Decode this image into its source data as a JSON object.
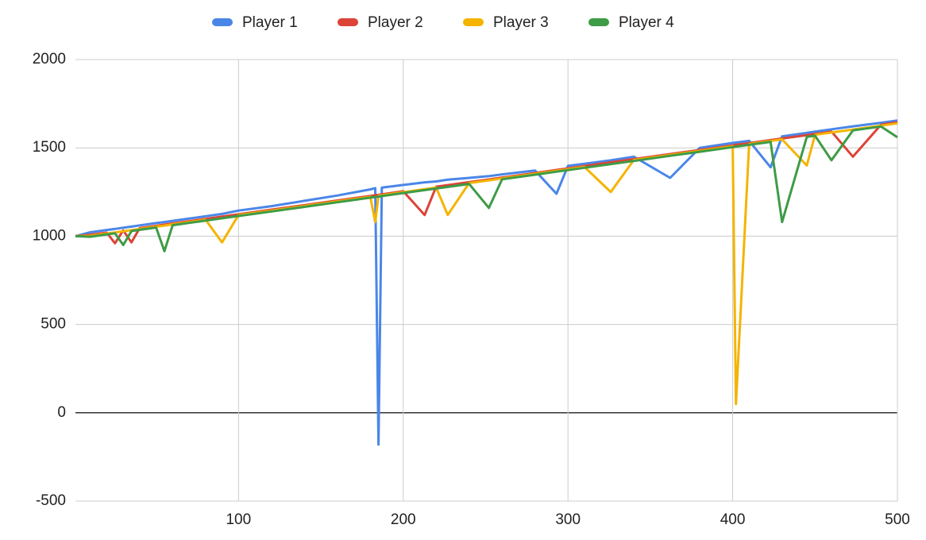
{
  "chart_data": {
    "type": "line",
    "x": [
      1,
      10,
      20,
      25,
      30,
      35,
      40,
      50,
      55,
      60,
      70,
      80,
      90,
      100,
      120,
      140,
      160,
      180,
      183,
      185,
      187,
      200,
      213,
      220,
      227,
      240,
      252,
      260,
      280,
      293,
      300,
      310,
      326,
      340,
      362,
      380,
      400,
      402,
      410,
      423,
      430,
      445,
      450,
      460,
      473,
      490,
      500
    ],
    "series": [
      {
        "name": "Player 1",
        "color": "#4a86e8",
        "values": [
          1000,
          1022,
          1035,
          1041,
          1048,
          1054,
          1061,
          1074,
          1080,
          1087,
          1100,
          1113,
          1126,
          1145,
          1170,
          1200,
          1230,
          1265,
          1272,
          -180,
          1275,
          1290,
          1305,
          1310,
          1320,
          1330,
          1340,
          1350,
          1372,
          1240,
          1398,
          1410,
          1430,
          1450,
          1330,
          1500,
          1528,
          1530,
          1540,
          1390,
          1565,
          1585,
          1592,
          1605,
          1622,
          1642,
          1655
        ]
      },
      {
        "name": "Player 2",
        "color": "#db4437",
        "values": [
          1000,
          1008,
          1020,
          960,
          1033,
          965,
          1046,
          1059,
          1065,
          1072,
          1085,
          1098,
          1111,
          1124,
          1150,
          1176,
          1202,
          1228,
          1232,
          1234,
          1237,
          1254,
          1120,
          1280,
          1289,
          1306,
          1321,
          1332,
          1358,
          1375,
          1384,
          1397,
          1418,
          1436,
          1465,
          1488,
          1514,
          1517,
          1527,
          1544,
          1553,
          1572,
          1579,
          1592,
          1450,
          1631,
          1645
        ]
      },
      {
        "name": "Player 3",
        "color": "#f4b400",
        "values": [
          1000,
          1002,
          1015,
          1021,
          1028,
          1034,
          1041,
          1054,
          1060,
          1067,
          1080,
          1093,
          965,
          1119,
          1145,
          1171,
          1197,
          1223,
          1080,
          1229,
          1232,
          1249,
          1266,
          1275,
          1120,
          1301,
          1316,
          1327,
          1353,
          1370,
          1379,
          1392,
          1250,
          1431,
          1460,
          1483,
          1509,
          50,
          1522,
          1539,
          1548,
          1400,
          1574,
          1587,
          1604,
          1626,
          1639
        ]
      },
      {
        "name": "Player 4",
        "color": "#3e9b46",
        "values": [
          1000,
          997,
          1010,
          1016,
          950,
          1029,
          1036,
          1049,
          915,
          1062,
          1075,
          1088,
          1101,
          1114,
          1140,
          1166,
          1192,
          1218,
          1222,
          1224,
          1227,
          1244,
          1261,
          1270,
          1279,
          1296,
          1160,
          1322,
          1348,
          1365,
          1374,
          1387,
          1408,
          1426,
          1455,
          1478,
          1504,
          1507,
          1517,
          1534,
          1080,
          1562,
          1569,
          1430,
          1599,
          1621,
          1560
        ]
      }
    ],
    "xlim": [
      1,
      500
    ],
    "xticks": [
      100,
      200,
      300,
      400,
      500
    ],
    "ylim": [
      -500,
      2000
    ],
    "yticks": [
      -500,
      0,
      500,
      1000,
      1500,
      2000
    ],
    "grid": true,
    "legend": "top"
  }
}
